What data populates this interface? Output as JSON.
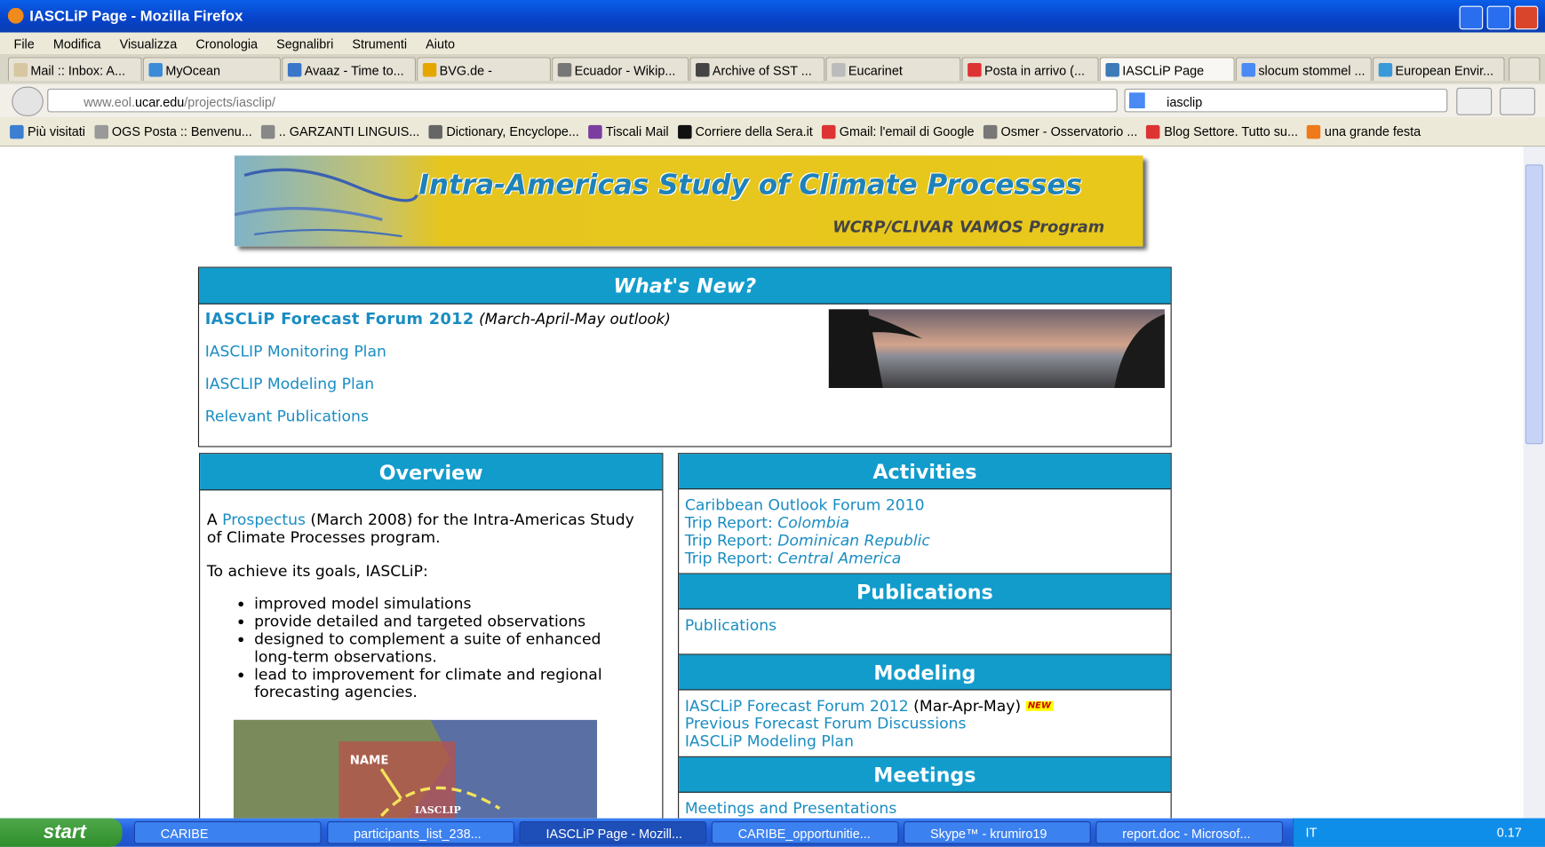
{
  "window": {
    "title": "IASCLiP Page - Mozilla Firefox"
  },
  "menu": [
    "File",
    "Modifica",
    "Visualizza",
    "Cronologia",
    "Segnalibri",
    "Strumenti",
    "Aiuto"
  ],
  "tabs": [
    "Mail :: Inbox: A...",
    "MyOcean",
    "Avaaz - Time to...",
    "BVG.de -",
    "Ecuador - Wikip...",
    "Archive of SST ...",
    "Eucarinet",
    "Posta in arrivo (...",
    "IASCLiP Page",
    "slocum stommel ...",
    "European Envir..."
  ],
  "address": {
    "url_prefix": "www.eol.",
    "url_domain": "ucar.edu",
    "url_path": "/projects/iasclip/",
    "search": "iasclip"
  },
  "bookmarks": [
    "Più visitati",
    "OGS Posta :: Benvenu...",
    ".. GARZANTI LINGUIS...",
    "Dictionary, Encyclope...",
    "Tiscali Mail",
    "Corriere della Sera.it",
    "Gmail: l'email di Google",
    "Osmer - Osservatorio ...",
    "Blog Settore. Tutto su...",
    "una grande festa"
  ],
  "banner": {
    "title": "Intra-Americas Study of Climate Processes",
    "subtitle": "WCRP/CLIVAR VAMOS Program"
  },
  "whats_new": {
    "heading": "What's New?",
    "featured": {
      "link": "IASCLiP Forecast Forum 2012",
      "note": "(March-April-May outlook)"
    },
    "links": [
      "IASCLIP Monitoring Plan",
      "IASCLIP Modeling Plan",
      "Relevant Publications"
    ]
  },
  "overview": {
    "heading": "Overview",
    "intro_start": "A",
    "intro_link": "Prospectus",
    "intro_end": "(March 2008) for the Intra-Americas Study of Climate Processes program.",
    "goals_lead": "To achieve its goals, IASCLiP:",
    "goals": [
      "improved model simulations",
      "provide detailed and targeted observations",
      "designed to complement a suite of enhanced long-term observations.",
      "lead to improvement for climate and regional forecasting agencies."
    ],
    "map_labels": [
      "NAME",
      "IASCLIP"
    ]
  },
  "activities": {
    "heading": "Activities",
    "forum": "Caribbean Outlook Forum 2010",
    "trip_prefix": "Trip Report:",
    "trips": [
      "Colombia",
      "Dominican Republic",
      "Central America"
    ]
  },
  "publications": {
    "heading": "Publications",
    "links": [
      "Publications"
    ]
  },
  "modeling": {
    "heading": "Modeling",
    "forum": {
      "link": "IASCLiP Forecast Forum 2012",
      "note": "(Mar-Apr-May)",
      "badge": "NEW"
    },
    "links": [
      "Previous Forecast Forum Discussions",
      "IASCLiP Modeling Plan"
    ]
  },
  "meetings": {
    "heading": "Meetings",
    "links": [
      "Meetings and Presentations"
    ]
  },
  "taskbar": {
    "start": "start",
    "items": [
      "CARIBE",
      "participants_list_238...",
      "IASCLiP Page - Mozill...",
      "CARIBE_opportunitie...",
      "Skype™ - krumiro19",
      "report.doc - Microsof..."
    ],
    "language": "IT",
    "clock": "0.17"
  }
}
